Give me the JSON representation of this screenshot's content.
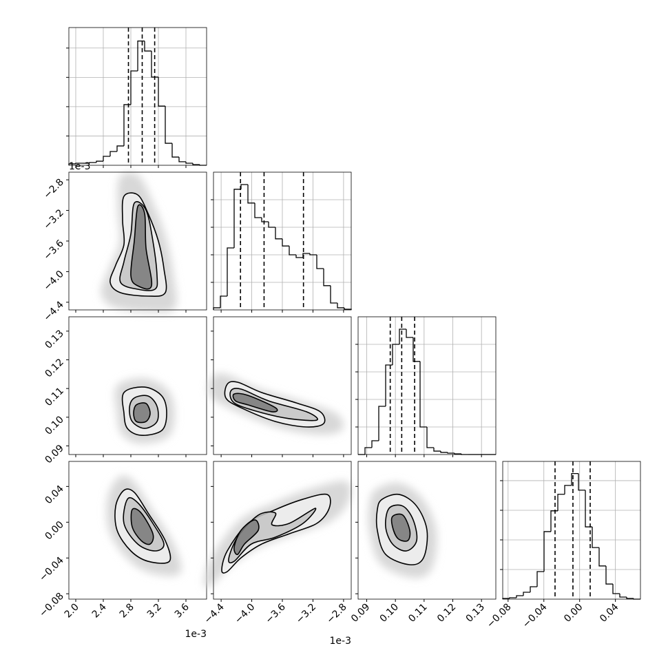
{
  "chart_data": {
    "type": "corner",
    "color": "#000000",
    "grid": true,
    "variables": [
      {
        "lim": [
          1.9,
          3.9
        ],
        "ticks": [
          {
            "value": 2,
            "label": "2.0"
          },
          2.4,
          2.8,
          3.2,
          3.6
        ],
        "offset_label": "1e-3",
        "bins": [
          1.9,
          2.0,
          2.1,
          2.2,
          2.3,
          2.4,
          2.5,
          2.6,
          2.7,
          2.8,
          2.9,
          3.0,
          3.1,
          3.2,
          3.3,
          3.4,
          3.5,
          3.6,
          3.7,
          3.8,
          3.9
        ],
        "counts": [
          24,
          35,
          35,
          47,
          70,
          153,
          235,
          330,
          1035,
          1610,
          2120,
          1950,
          1505,
          1010,
          375,
          140,
          60,
          35,
          12,
          0
        ],
        "hist_ylim": [
          0,
          2350
        ],
        "hist_yticks": [
          500,
          1000,
          1500,
          2000
        ],
        "quantiles": [
          2.765,
          2.965,
          3.146
        ]
      },
      {
        "lim": [
          -4.5,
          -2.7
        ],
        "ticks": [
          {
            "value": -4.4,
            "label": "−4.4"
          },
          {
            "value": -4.0,
            "label": "−4.0"
          },
          {
            "value": -3.6,
            "label": "−3.6"
          },
          {
            "value": -3.2,
            "label": "−3.2"
          },
          {
            "value": -2.8,
            "label": "−2.8"
          }
        ],
        "offset_label": "1e-3",
        "bins": [
          -4.5,
          -4.41,
          -4.32,
          -4.23,
          -4.14,
          -4.05,
          -3.96,
          -3.87,
          -3.78,
          -3.69,
          -3.6,
          -3.51,
          -3.42,
          -3.33,
          -3.24,
          -3.15,
          -3.06,
          -2.97,
          -2.88,
          -2.79,
          -2.7
        ],
        "counts": [
          38,
          250,
          1125,
          2190,
          2275,
          1940,
          1675,
          1600,
          1500,
          1290,
          1160,
          1000,
          950,
          1025,
          1000,
          750,
          440,
          125,
          38,
          12
        ],
        "hist_ylim": [
          0,
          2500
        ],
        "hist_yticks": [
          500,
          1000,
          1500,
          2000
        ],
        "quantiles": [
          -4.147,
          -3.839,
          -3.324
        ]
      },
      {
        "lim": [
          0.087,
          0.135
        ],
        "ticks": [
          0.09,
          {
            "value": 0.1,
            "label": "0.10"
          },
          0.11,
          0.12,
          0.13
        ],
        "bins": [
          0.087,
          0.0894,
          0.0918,
          0.0942,
          0.0966,
          0.099,
          0.1014,
          0.1038,
          0.1062,
          0.1086,
          0.111,
          0.1134,
          0.1158,
          0.1182,
          0.1206,
          0.123,
          0.1254,
          0.1278,
          0.1302,
          0.1326,
          0.135
        ],
        "counts": [
          0,
          125,
          250,
          875,
          1625,
          2000,
          2275,
          2125,
          1690,
          500,
          125,
          62,
          38,
          25,
          12,
          0,
          0,
          0,
          0,
          0
        ],
        "hist_ylim": [
          0,
          2500
        ],
        "hist_yticks": [
          500,
          1000,
          1500,
          2000
        ],
        "quantiles": [
          0.0982,
          0.1022,
          0.1067
        ]
      },
      {
        "lim": [
          -0.086,
          0.068
        ],
        "ticks": [
          {
            "value": -0.08,
            "label": "−0.08"
          },
          {
            "value": -0.04,
            "label": "−0.04"
          },
          {
            "value": 0,
            "label": "0.00"
          },
          0.04
        ],
        "bins": [
          -0.086,
          -0.0783,
          -0.0706,
          -0.0629,
          -0.0552,
          -0.0475,
          -0.0398,
          -0.0321,
          -0.0244,
          -0.0167,
          -0.009,
          -0.0013,
          0.0064,
          0.0141,
          0.0218,
          0.0295,
          0.0372,
          0.0449,
          0.0526,
          0.0603,
          0.068
        ],
        "counts": [
          12,
          23,
          58,
          116,
          209,
          465,
          1140,
          1490,
          1770,
          1920,
          2120,
          1840,
          1220,
          870,
          560,
          255,
          93,
          35,
          12,
          0
        ],
        "hist_ylim": [
          0,
          2325
        ],
        "hist_yticks": [
          500,
          1000,
          1500,
          2000
        ],
        "quantiles": [
          -0.0275,
          -0.0075,
          0.0118
        ]
      }
    ],
    "pairs": [
      {
        "contours": [
          {
            "x": [
              2.7,
              2.9,
              3.05,
              3.2,
              3.28,
              3.3,
              3.05,
              2.65,
              2.5,
              2.58,
              2.7,
              2.68
            ],
            "y": [
              -3.015,
              -2.997,
              -3.24,
              -3.6,
              -3.96,
              -4.275,
              -4.32,
              -4.275,
              -4.14,
              -3.915,
              -3.645,
              -3.33
            ]
          },
          {
            "x": [
              2.85,
              3.02,
              3.12,
              3.18,
              3.15,
              2.9,
              2.65,
              2.7,
              2.8
            ],
            "y": [
              -3.105,
              -3.195,
              -3.6,
              -4.05,
              -4.23,
              -4.23,
              -4.14,
              -3.87,
              -3.51
            ]
          },
          {
            "x": [
              2.9,
              3.0,
              3.02,
              3.1,
              2.9,
              2.8,
              2.85
            ],
            "y": [
              -3.15,
              -3.24,
              -3.69,
              -4.185,
              -4.185,
              -4.05,
              -3.6
            ]
          }
        ]
      },
      {
        "contours": [
          {
            "x": [
              2.7,
              3.0,
              3.25,
              3.32,
              3.25,
              2.95,
              2.75,
              2.7
            ],
            "y": [
              0.1086,
              0.1105,
              0.1074,
              0.1014,
              0.0954,
              0.0937,
              0.0961,
              0.1014
            ]
          },
          {
            "x": [
              2.85,
              3.05,
              3.18,
              3.18,
              3.0,
              2.82,
              2.78
            ],
            "y": [
              0.1067,
              0.1074,
              0.1038,
              0.0985,
              0.0961,
              0.0985,
              0.1033
            ]
          },
          {
            "x": [
              2.88,
              3.02,
              3.08,
              3.02,
              2.88,
              2.84
            ],
            "y": [
              0.1043,
              0.1048,
              0.1014,
              0.0985,
              0.0985,
              0.1014
            ]
          }
        ]
      },
      {
        "contours": [
          {
            "x": [
              -4.32,
              -4.185,
              -3.87,
              -3.42,
              -3.105,
              -3.06,
              -3.285,
              -3.69,
              -4.14,
              -4.338
            ],
            "y": [
              0.1115,
              0.1122,
              0.1086,
              0.105,
              0.1019,
              0.0978,
              0.0966,
              0.0985,
              0.1033,
              0.1067
            ]
          },
          {
            "x": [
              -4.275,
              -4.14,
              -3.78,
              -3.285,
              -3.15,
              -3.51,
              -3.915,
              -4.23
            ],
            "y": [
              0.1091,
              0.1098,
              0.1057,
              0.1019,
              0.099,
              0.0995,
              0.1019,
              0.105
            ]
          },
          {
            "x": [
              -4.23,
              -4.05,
              -3.69,
              -3.735,
              -4.05,
              -4.212
            ],
            "y": [
              0.1081,
              0.1076,
              0.1033,
              0.1019,
              0.1043,
              0.1057
            ]
          }
        ]
      },
      {
        "contours": [
          {
            "x": [
              2.7,
              2.85,
              3.05,
              3.3,
              3.36,
              3.05,
              2.8,
              2.6,
              2.58
            ],
            "y": [
              0.0357,
              0.0334,
              0.0103,
              -0.0206,
              -0.0437,
              -0.0437,
              -0.0321,
              -0.009,
              0.018
            ]
          },
          {
            "x": [
              2.75,
              2.9,
              3.12,
              3.28,
              3.15,
              2.9,
              2.7
            ],
            "y": [
              0.0257,
              0.0218,
              -0.0013,
              -0.0244,
              -0.0321,
              -0.0244,
              -0.0013
            ]
          },
          {
            "x": [
              2.82,
              2.95,
              3.12,
              3.08,
              2.95,
              2.82
            ],
            "y": [
              0.0141,
              0.0103,
              -0.0129,
              -0.0244,
              -0.0206,
              -0.0052
            ]
          }
        ]
      },
      {
        "contours": [
          {
            "x": [
              -4.392,
              -4.32,
              -4.05,
              -3.69,
              -3.33,
              -3.015,
              -2.988,
              -3.15,
              -3.51,
              -3.87,
              -4.14,
              -4.32
            ],
            "y": [
              -0.0537,
              -0.0321,
              -0.0013,
              0.0141,
              0.0257,
              0.031,
              0.0156,
              -0.0013,
              -0.0129,
              -0.0244,
              -0.0398,
              -0.0552
            ]
          },
          {
            "x": [
              -4.302,
              -4.185,
              -3.915,
              -3.69,
              -3.735,
              -3.51,
              -3.168,
              -3.33,
              -3.69,
              -4.005,
              -4.23
            ],
            "y": [
              -0.0413,
              -0.0167,
              0.0079,
              0.0103,
              -0.0028,
              -0.0013,
              0.0156,
              -0.0013,
              -0.0167,
              -0.0244,
              -0.0437
            ]
          },
          {
            "x": [
              -4.23,
              -4.14,
              -3.96,
              -3.915,
              -4.095,
              -4.185
            ],
            "y": [
              -0.0282,
              -0.009,
              0.0026,
              -0.009,
              -0.0244,
              -0.036
            ]
          }
        ]
      },
      {
        "contours": [
          {
            "x": [
              0.0954,
              0.1014,
              0.1074,
              0.111,
              0.1098,
              0.105,
              0.0966,
              0.0937,
              0.0937
            ],
            "y": [
              0.0257,
              0.031,
              0.018,
              -0.009,
              -0.0398,
              -0.0475,
              -0.036,
              -0.009,
              0.0141
            ]
          },
          {
            "x": [
              0.0978,
              0.1026,
              0.1062,
              0.1074,
              0.1038,
              0.099,
              0.0966
            ],
            "y": [
              0.0156,
              0.018,
              0.0026,
              -0.0206,
              -0.0321,
              -0.0244,
              -0.0052
            ]
          },
          {
            "x": [
              0.099,
              0.1026,
              0.105,
              0.1043,
              0.1009,
              0.099
            ],
            "y": [
              0.0064,
              0.0079,
              -0.009,
              -0.0206,
              -0.0183,
              -0.0052
            ]
          }
        ]
      }
    ]
  }
}
